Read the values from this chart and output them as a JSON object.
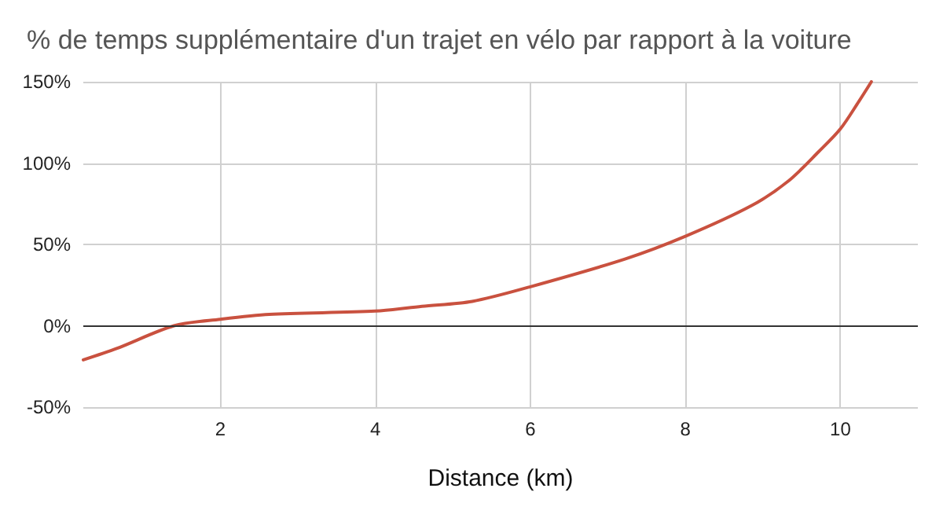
{
  "chart_data": {
    "type": "line",
    "title": "% de temps supplémentaire d'un trajet en vélo par rapport à la voiture",
    "xlabel": "Distance (km)",
    "x": [
      0.23,
      0.66,
      1.4,
      2,
      2.63,
      4,
      4.6,
      5.25,
      6,
      7.22,
      8,
      8.86,
      9.33,
      9.72,
      10,
      10.24,
      10.4
    ],
    "series": [
      {
        "color": "#c9513f",
        "values": [
          -21,
          -14,
          0,
          4,
          7,
          9,
          12,
          15,
          24,
          41,
          55,
          74,
          89,
          107,
          121,
          138,
          150
        ]
      }
    ],
    "xlim": [
      0.23,
      11
    ],
    "xticks": [
      2,
      4,
      6,
      8,
      10
    ],
    "ylim": [
      -50,
      150
    ],
    "yticks": [
      {
        "value": -50,
        "label": "-50%"
      },
      {
        "value": 0,
        "label": "0%"
      },
      {
        "value": 50,
        "label": "50%"
      },
      {
        "value": 100,
        "label": "100%"
      },
      {
        "value": 150,
        "label": "150%"
      }
    ],
    "ref_lines": [
      {
        "axis": "y",
        "value": 0,
        "color": "#333333"
      }
    ],
    "grid": true,
    "marker": "none",
    "line_style": "solid"
  }
}
